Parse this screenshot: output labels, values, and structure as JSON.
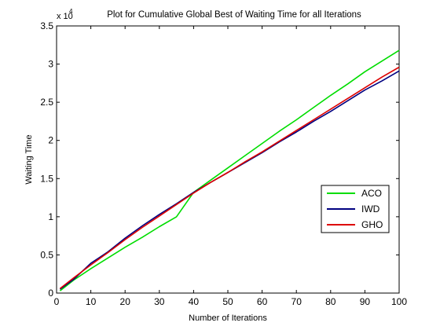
{
  "chart_data": {
    "type": "line",
    "title": "Plot for Cumulative Global Best of Waiting Time for all Iterations",
    "multiplier_base": "x 10",
    "multiplier_exp": "4",
    "xlabel": "Number of Iterations",
    "ylabel": "Waiting Time",
    "xlim": [
      0,
      100
    ],
    "ylim": [
      0,
      35000
    ],
    "xticks": [
      0,
      10,
      20,
      30,
      40,
      50,
      60,
      70,
      80,
      90,
      100
    ],
    "yticks": [
      0,
      5000,
      10000,
      15000,
      20000,
      25000,
      30000,
      35000
    ],
    "ytick_labels": [
      "0",
      "0.5",
      "1",
      "1.5",
      "2",
      "2.5",
      "3",
      "3.5"
    ],
    "grid": false,
    "legend_position": "lower-right",
    "series": [
      {
        "name": "ACO",
        "color": "#00dd00",
        "x": [
          1,
          5,
          10,
          15,
          20,
          25,
          30,
          35,
          40,
          45,
          50,
          55,
          60,
          65,
          70,
          75,
          80,
          85,
          90,
          95,
          100
        ],
        "y": [
          300,
          1700,
          3200,
          4600,
          6000,
          7300,
          8700,
          10000,
          13200,
          14800,
          16400,
          18000,
          19600,
          21200,
          22700,
          24300,
          25900,
          27400,
          29000,
          30400,
          31800
        ]
      },
      {
        "name": "IWD",
        "color": "#000080",
        "x": [
          1,
          5,
          10,
          15,
          20,
          25,
          30,
          35,
          40,
          45,
          50,
          55,
          60,
          65,
          70,
          75,
          80,
          85,
          90,
          95,
          100
        ],
        "y": [
          500,
          1800,
          3900,
          5400,
          7200,
          8800,
          10300,
          11700,
          13200,
          14500,
          15800,
          17100,
          18400,
          19800,
          21100,
          22500,
          23800,
          25200,
          26600,
          27800,
          29100
        ]
      },
      {
        "name": "GHO",
        "color": "#dd0000",
        "x": [
          1,
          5,
          10,
          15,
          20,
          25,
          30,
          35,
          40,
          45,
          50,
          55,
          60,
          65,
          70,
          75,
          80,
          85,
          90,
          95,
          100
        ],
        "y": [
          600,
          2000,
          3700,
          5300,
          7000,
          8600,
          10100,
          11600,
          13100,
          14500,
          15800,
          17200,
          18500,
          19900,
          21300,
          22700,
          24100,
          25500,
          26900,
          28300,
          29600
        ]
      }
    ]
  }
}
